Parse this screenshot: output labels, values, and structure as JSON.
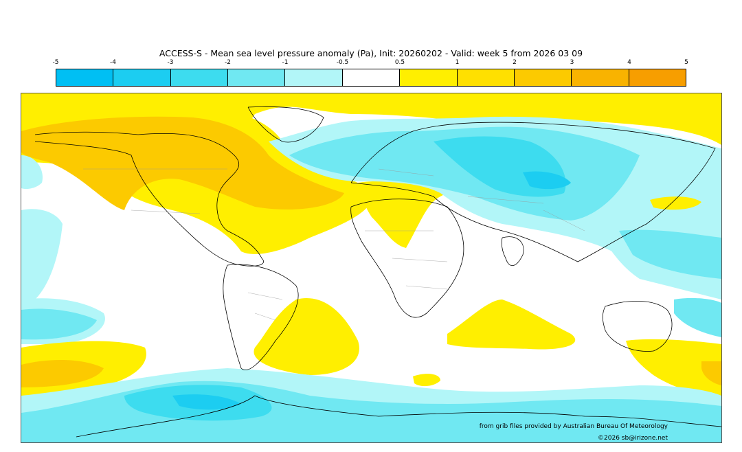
{
  "title": "ACCESS-S - Mean sea level pressure anomaly (Pa), Init: 20260202 - Valid: week 5 from 2026 03 09",
  "colorbar": {
    "tick_labels": [
      "-5",
      "-4",
      "-3",
      "-2",
      "-1",
      "-0.5",
      "0.5",
      "1",
      "2",
      "3",
      "4",
      "5"
    ],
    "colors": [
      "#00bff3",
      "#1ccdf1",
      "#3ddcef",
      "#70e8f2",
      "#b2f6f8",
      "#ffffff",
      "#ffef00",
      "#ffe000",
      "#fcca00",
      "#f9b300",
      "#f79e00"
    ]
  },
  "credit": "from grib files provided by Australian Bureau Of Meteorology",
  "copyright": "©2026 sb@irizone.net"
}
